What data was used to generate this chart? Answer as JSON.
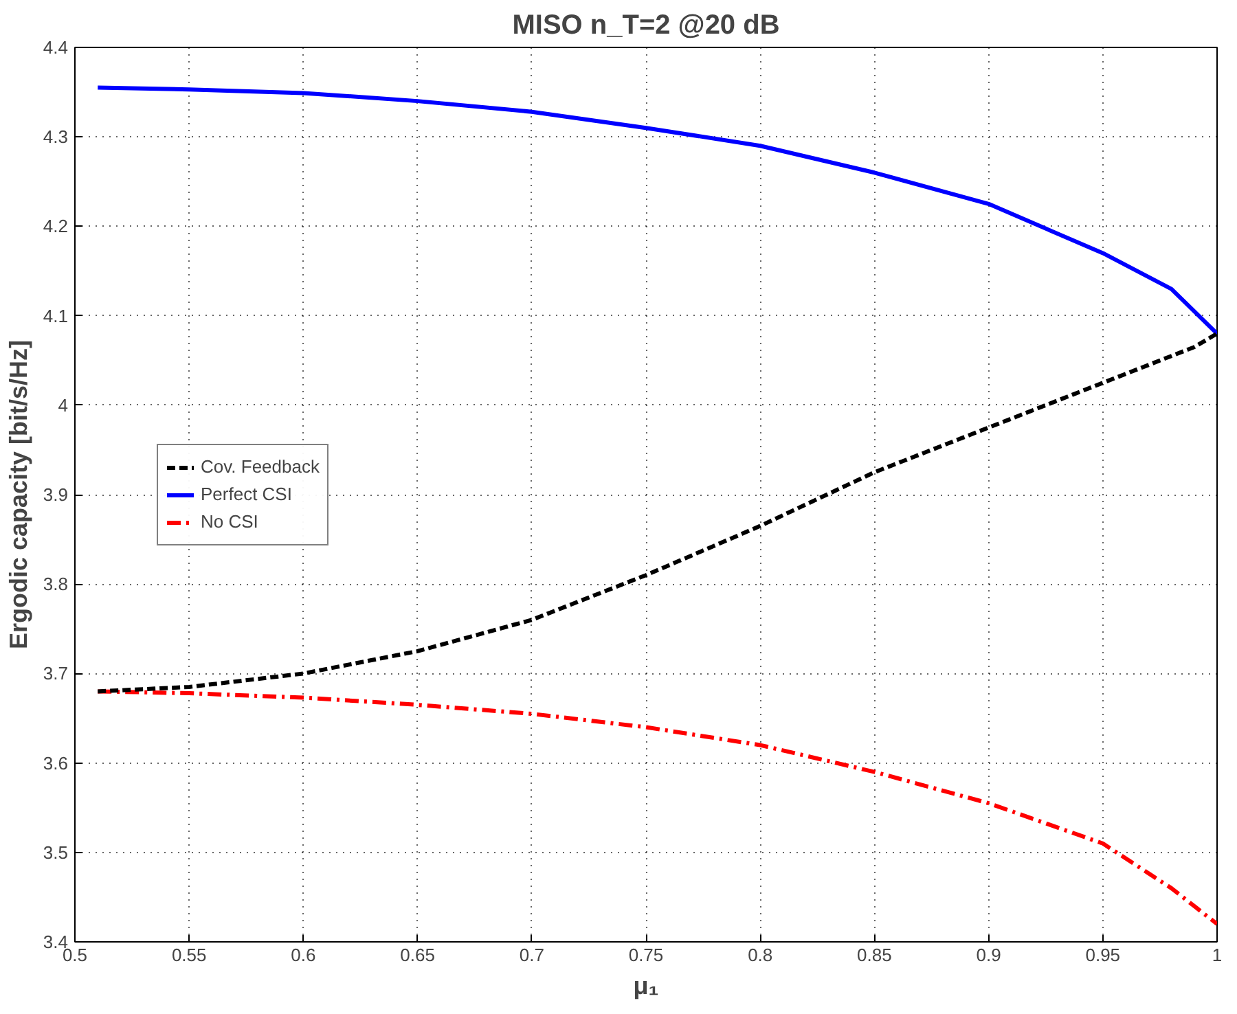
{
  "chart_data": {
    "type": "line",
    "title": "MISO n_T=2 @20 dB",
    "xlabel": "μ₁",
    "ylabel": "Ergodic capacity [bit/s/Hz]",
    "xlim": [
      0.5,
      1
    ],
    "ylim": [
      3.4,
      4.4
    ],
    "xticks": [
      0.5,
      0.55,
      0.6,
      0.65,
      0.7,
      0.75,
      0.8,
      0.85,
      0.9,
      0.95,
      1
    ],
    "yticks": [
      3.4,
      3.5,
      3.6,
      3.7,
      3.8,
      3.9,
      4,
      4.1,
      4.2,
      4.3,
      4.4
    ],
    "grid": true,
    "legend": "left",
    "x": [
      0.51,
      0.55,
      0.6,
      0.65,
      0.7,
      0.75,
      0.8,
      0.85,
      0.9,
      0.95,
      0.98,
      0.99,
      1
    ],
    "series": [
      {
        "name": "Cov. Feedback",
        "color": "#000000",
        "line_style": "dashed",
        "values": [
          3.68,
          3.685,
          3.7,
          3.725,
          3.76,
          3.81,
          3.865,
          3.925,
          3.975,
          4.025,
          4.055,
          4.065,
          4.08
        ]
      },
      {
        "name": "Perfect CSI",
        "color": "#0000ff",
        "line_style": "solid",
        "values": [
          4.355,
          4.353,
          4.349,
          4.34,
          4.328,
          4.31,
          4.29,
          4.26,
          4.225,
          4.17,
          4.13,
          4.105,
          4.08
        ]
      },
      {
        "name": "No CSI",
        "color": "#ff0000",
        "line_style": "dashdot",
        "values": [
          3.68,
          3.678,
          3.673,
          3.665,
          3.655,
          3.64,
          3.62,
          3.59,
          3.555,
          3.51,
          3.46,
          3.44,
          3.42
        ]
      }
    ]
  }
}
